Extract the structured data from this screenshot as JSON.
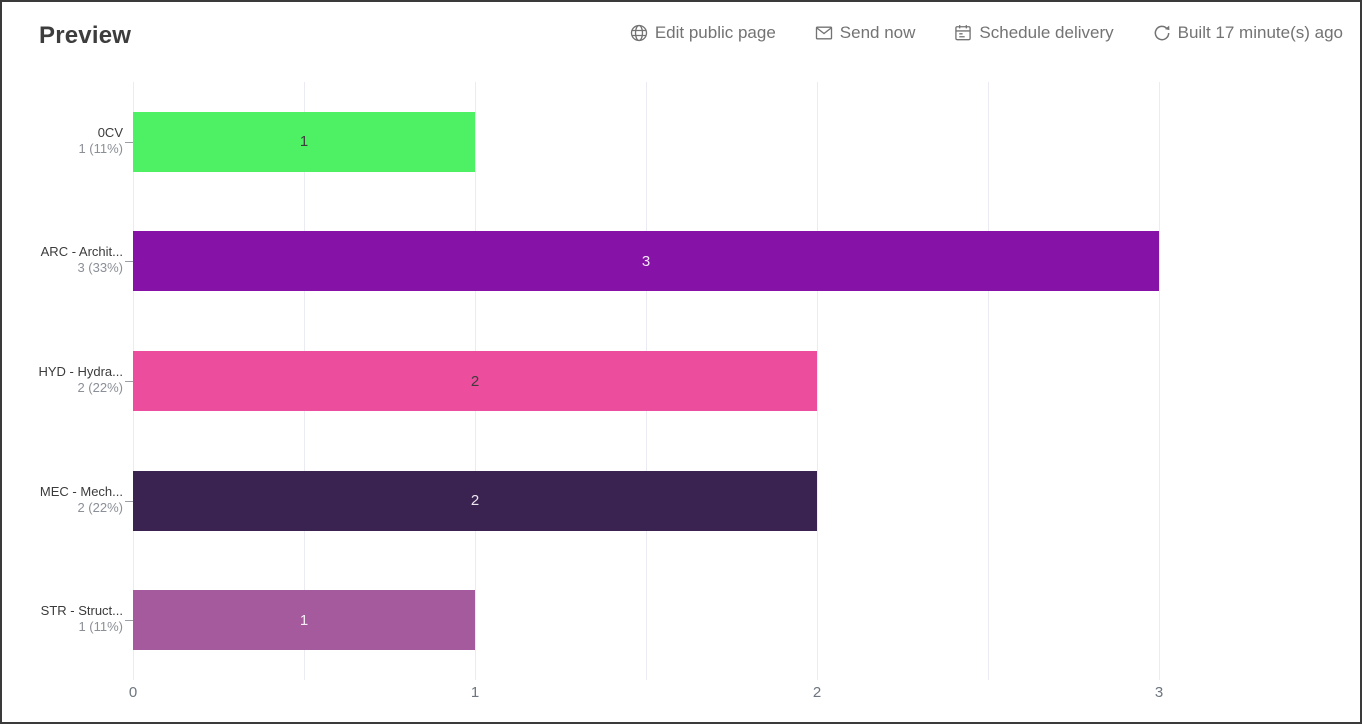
{
  "window": {
    "title": "Preview"
  },
  "toolbar": {
    "items": [
      {
        "icon": "globe-icon",
        "label": "Edit public page"
      },
      {
        "icon": "envelope-icon",
        "label": "Send now"
      },
      {
        "icon": "calendar-icon",
        "label": "Schedule delivery"
      },
      {
        "icon": "refresh-icon",
        "label": "Built 17 minute(s) ago"
      }
    ]
  },
  "chart_data": {
    "type": "bar",
    "orientation": "horizontal",
    "title": "",
    "categories": [
      "0CV",
      "ARC - Archit...",
      "HYD - Hydra...",
      "MEC - Mech...",
      "STR - Struct..."
    ],
    "category_sublabels": [
      "1 (11%)",
      "3 (33%)",
      "2 (22%)",
      "2 (22%)",
      "1 (11%)"
    ],
    "values": [
      1,
      3,
      2,
      2,
      1
    ],
    "bar_value_labels": [
      "1",
      "3",
      "2",
      "2",
      "1"
    ],
    "bar_colors": [
      "#4ef163",
      "#8712a8",
      "#ec4d9c",
      "#3a2350",
      "#a55a9e"
    ],
    "bar_label_colors": [
      "#3d3d3d",
      "#f2e8f4",
      "#3d3d3d",
      "#ece6ef",
      "#f4eef4"
    ],
    "xlim": [
      0,
      3.5
    ],
    "x_ticks": [
      0,
      1,
      2,
      3
    ],
    "x_tick_labels": [
      "0",
      "1",
      "2",
      "3"
    ],
    "grid": true,
    "grid_step": 0.5,
    "grid_color": "#ebebf3",
    "legend": false
  }
}
